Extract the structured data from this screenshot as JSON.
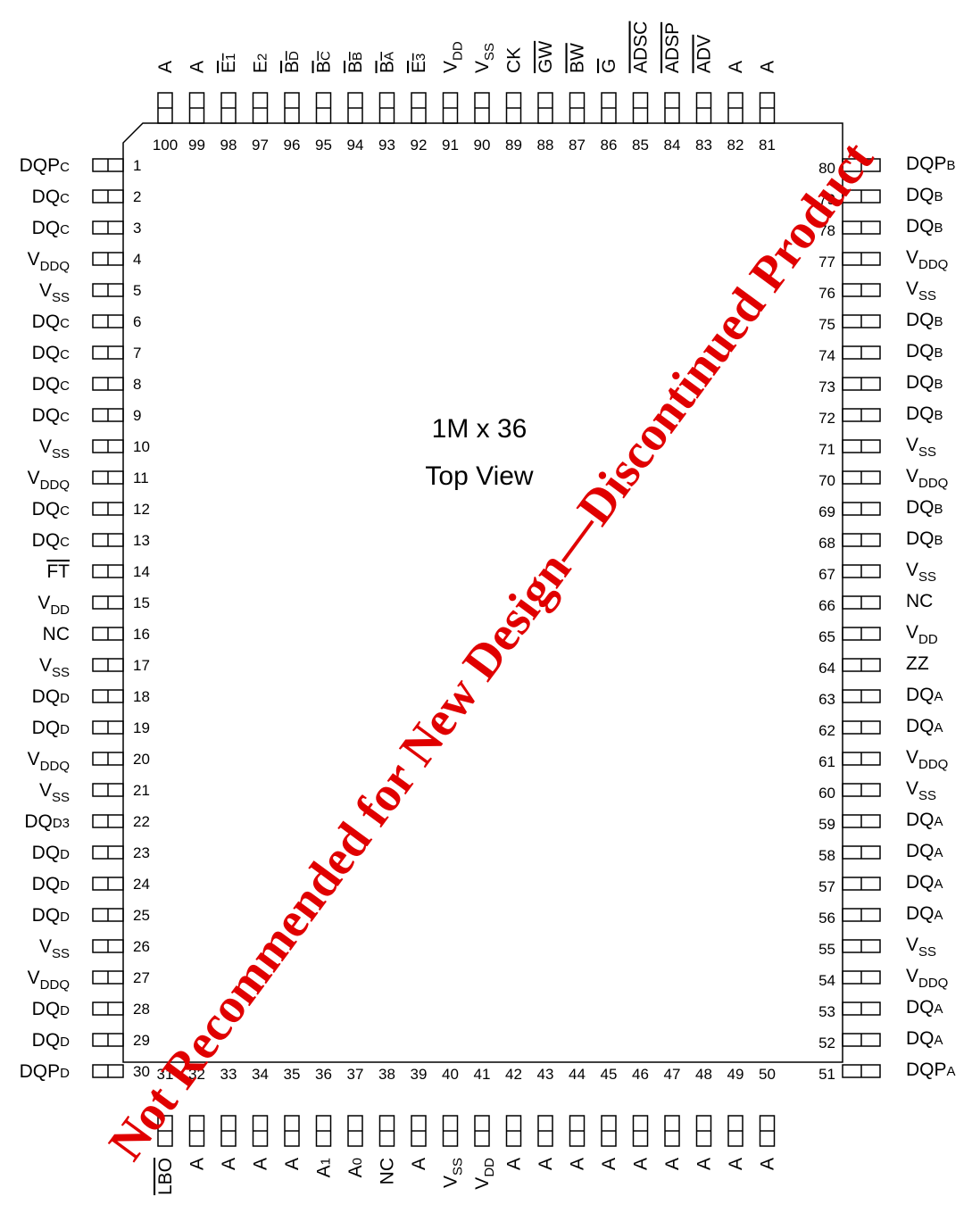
{
  "package": {
    "title_line1": "1M x 36",
    "title_line2": "Top View"
  },
  "watermark": {
    "text": "Not Recommended for New Design—Discontinued Product",
    "color": "#e00000"
  },
  "pins": {
    "left": [
      {
        "num": "1",
        "label": "DQPC"
      },
      {
        "num": "2",
        "label": "DQC"
      },
      {
        "num": "3",
        "label": "DQC"
      },
      {
        "num": "4",
        "label": "VDDQ"
      },
      {
        "num": "5",
        "label": "VSS"
      },
      {
        "num": "6",
        "label": "DQC"
      },
      {
        "num": "7",
        "label": "DQC"
      },
      {
        "num": "8",
        "label": "DQC"
      },
      {
        "num": "9",
        "label": "DQC"
      },
      {
        "num": "10",
        "label": "VSS"
      },
      {
        "num": "11",
        "label": "VDDQ"
      },
      {
        "num": "12",
        "label": "DQC"
      },
      {
        "num": "13",
        "label": "DQC"
      },
      {
        "num": "14",
        "label": "FT"
      },
      {
        "num": "15",
        "label": "VDD"
      },
      {
        "num": "16",
        "label": "NC"
      },
      {
        "num": "17",
        "label": "VSS"
      },
      {
        "num": "18",
        "label": "DQD"
      },
      {
        "num": "19",
        "label": "DQD"
      },
      {
        "num": "20",
        "label": "VDDQ"
      },
      {
        "num": "21",
        "label": "VSS"
      },
      {
        "num": "22",
        "label": "DQD3"
      },
      {
        "num": "23",
        "label": "DQD"
      },
      {
        "num": "24",
        "label": "DQD"
      },
      {
        "num": "25",
        "label": "DQD"
      },
      {
        "num": "26",
        "label": "VSS"
      },
      {
        "num": "27",
        "label": "VDDQ"
      },
      {
        "num": "28",
        "label": "DQD"
      },
      {
        "num": "29",
        "label": "DQD"
      },
      {
        "num": "30",
        "label": "DQPD"
      }
    ],
    "right": [
      {
        "num": "80",
        "label": "DQPB"
      },
      {
        "num": "79",
        "label": "DQB"
      },
      {
        "num": "78",
        "label": "DQB"
      },
      {
        "num": "77",
        "label": "VDDQ"
      },
      {
        "num": "76",
        "label": "VSS"
      },
      {
        "num": "75",
        "label": "DQB"
      },
      {
        "num": "74",
        "label": "DQB"
      },
      {
        "num": "73",
        "label": "DQB"
      },
      {
        "num": "72",
        "label": "DQB"
      },
      {
        "num": "71",
        "label": "VSS"
      },
      {
        "num": "70",
        "label": "VDDQ"
      },
      {
        "num": "69",
        "label": "DQB"
      },
      {
        "num": "68",
        "label": "DQB"
      },
      {
        "num": "67",
        "label": "VSS"
      },
      {
        "num": "66",
        "label": "NC"
      },
      {
        "num": "65",
        "label": "VDD"
      },
      {
        "num": "64",
        "label": "ZZ"
      },
      {
        "num": "63",
        "label": "DQA"
      },
      {
        "num": "62",
        "label": "DQA"
      },
      {
        "num": "61",
        "label": "VDDQ"
      },
      {
        "num": "60",
        "label": "VSS"
      },
      {
        "num": "59",
        "label": "DQA"
      },
      {
        "num": "58",
        "label": "DQA"
      },
      {
        "num": "57",
        "label": "DQA"
      },
      {
        "num": "56",
        "label": "DQA"
      },
      {
        "num": "55",
        "label": "VSS"
      },
      {
        "num": "54",
        "label": "VDDQ"
      },
      {
        "num": "53",
        "label": "DQA"
      },
      {
        "num": "52",
        "label": "DQA"
      },
      {
        "num": "51",
        "label": "DQPA"
      }
    ],
    "top": [
      {
        "num": "100",
        "label": "A"
      },
      {
        "num": "99",
        "label": "A"
      },
      {
        "num": "98",
        "label": "E1"
      },
      {
        "num": "97",
        "label": "E2"
      },
      {
        "num": "96",
        "label": "BD"
      },
      {
        "num": "95",
        "label": "BC"
      },
      {
        "num": "94",
        "label": "BB"
      },
      {
        "num": "93",
        "label": "BA"
      },
      {
        "num": "92",
        "label": "E3"
      },
      {
        "num": "91",
        "label": "VDD"
      },
      {
        "num": "90",
        "label": "VSS"
      },
      {
        "num": "89",
        "label": "CK"
      },
      {
        "num": "88",
        "label": "GW"
      },
      {
        "num": "87",
        "label": "BW"
      },
      {
        "num": "86",
        "label": "G"
      },
      {
        "num": "85",
        "label": "ADSC"
      },
      {
        "num": "84",
        "label": "ADSP"
      },
      {
        "num": "83",
        "label": "ADV"
      },
      {
        "num": "82",
        "label": "A"
      },
      {
        "num": "81",
        "label": "A"
      }
    ],
    "bottom": [
      {
        "num": "31",
        "label": "LBO"
      },
      {
        "num": "32",
        "label": "A"
      },
      {
        "num": "33",
        "label": "A"
      },
      {
        "num": "34",
        "label": "A"
      },
      {
        "num": "35",
        "label": "A"
      },
      {
        "num": "36",
        "label": "A1"
      },
      {
        "num": "37",
        "label": "A0"
      },
      {
        "num": "38",
        "label": "NC"
      },
      {
        "num": "39",
        "label": "A"
      },
      {
        "num": "40",
        "label": "VSS"
      },
      {
        "num": "41",
        "label": "VDD"
      },
      {
        "num": "42",
        "label": "A"
      },
      {
        "num": "43",
        "label": "A"
      },
      {
        "num": "44",
        "label": "A"
      },
      {
        "num": "45",
        "label": "A"
      },
      {
        "num": "46",
        "label": "A"
      },
      {
        "num": "47",
        "label": "A"
      },
      {
        "num": "48",
        "label": "A"
      },
      {
        "num": "49",
        "label": "A"
      },
      {
        "num": "50",
        "label": "A"
      }
    ]
  }
}
